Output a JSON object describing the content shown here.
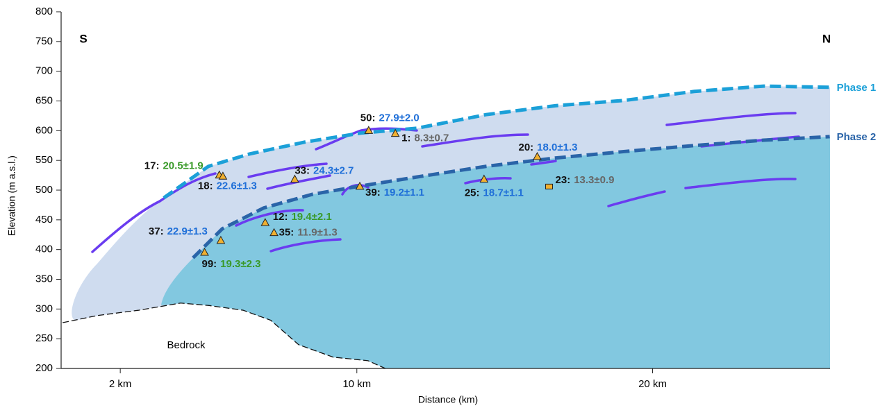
{
  "chart_data": {
    "type": "profile",
    "xlabel": "Distance (km)",
    "ylabel": "Elevation (m a.s.l.)",
    "xlim": [
      0,
      26
    ],
    "ylim": [
      200,
      800
    ],
    "yticks": [
      200,
      250,
      300,
      350,
      400,
      450,
      500,
      550,
      600,
      650,
      700,
      750,
      800
    ],
    "xticks": [
      {
        "value": 2,
        "label": "2 km"
      },
      {
        "value": 10,
        "label": "10 km"
      },
      {
        "value": 20,
        "label": "20 km"
      }
    ],
    "direction_labels": [
      "S",
      "N"
    ],
    "region_label": "Bedrock",
    "series": [
      {
        "name": "Phase 1",
        "color": "#1ba0d8",
        "x": [
          3.47,
          4.98,
          6.38,
          8.26,
          10.14,
          12.02,
          14.37,
          16.71,
          19.06,
          21.41,
          23.76,
          25.99
        ],
        "values": [
          487,
          540,
          561,
          581,
          596,
          604,
          627,
          642,
          651,
          666,
          675,
          673
        ]
      },
      {
        "name": "Phase 2",
        "color": "#2a64a8",
        "x": [
          4.46,
          5.45,
          6.85,
          8.5,
          10.14,
          12.02,
          14.37,
          16.71,
          19.06,
          21.41,
          23.76,
          25.99
        ],
        "values": [
          386,
          435,
          470,
          493,
          507,
          522,
          540,
          554,
          565,
          575,
          584,
          590
        ]
      }
    ],
    "bedrock": {
      "x": [
        0.05,
        1.22,
        2.63,
        4.04,
        4.98,
        6.15,
        7.09,
        8.03,
        9.2,
        10.38,
        10.96
      ],
      "values": [
        277,
        289,
        298,
        310,
        306,
        298,
        281,
        240,
        219,
        213,
        200
      ]
    },
    "samples": [
      {
        "id": "50:",
        "age": "27.9±2.0",
        "color": "#1f6fd8",
        "x": 10.4,
        "y": 600,
        "marker": "triangle"
      },
      {
        "id": "1:",
        "age": "8.3±0.7",
        "color": "#666666",
        "x": 11.3,
        "y": 595,
        "marker": "triangle"
      },
      {
        "id": "17:",
        "age": "20.5±1.9",
        "color": "#3a9a2a",
        "x": 5.35,
        "y": 525,
        "marker": "triangle"
      },
      {
        "id": "18:",
        "age": "22.6±1.3",
        "color": "#1f6fd8",
        "x": 5.47,
        "y": 523,
        "marker": "triangle"
      },
      {
        "id": "33:",
        "age": "24.3±2.7",
        "color": "#1f6fd8",
        "x": 7.9,
        "y": 518,
        "marker": "triangle"
      },
      {
        "id": "39:",
        "age": "19.2±1.1",
        "color": "#1f6fd8",
        "x": 10.1,
        "y": 506,
        "marker": "triangle"
      },
      {
        "id": "20:",
        "age": "18.0±1.3",
        "color": "#1f6fd8",
        "x": 16.1,
        "y": 556,
        "marker": "triangle"
      },
      {
        "id": "25:",
        "age": "18.7±1.1",
        "color": "#1f6fd8",
        "x": 14.3,
        "y": 518,
        "marker": "triangle"
      },
      {
        "id": "23:",
        "age": "13.3±0.9",
        "color": "#666666",
        "x": 16.5,
        "y": 506,
        "marker": "square"
      },
      {
        "id": "12:",
        "age": "19.4±2.1",
        "color": "#3a9a2a",
        "x": 6.9,
        "y": 445,
        "marker": "triangle"
      },
      {
        "id": "35:",
        "age": "11.9±1.3",
        "color": "#666666",
        "x": 7.2,
        "y": 428,
        "marker": "triangle"
      },
      {
        "id": "37:",
        "age": "22.9±1.3",
        "color": "#1f6fd8",
        "x": 5.4,
        "y": 415,
        "marker": "triangle"
      },
      {
        "id": "99:",
        "age": "19.3±2.3",
        "color": "#3a9a2a",
        "x": 4.85,
        "y": 395,
        "marker": "triangle"
      }
    ]
  }
}
